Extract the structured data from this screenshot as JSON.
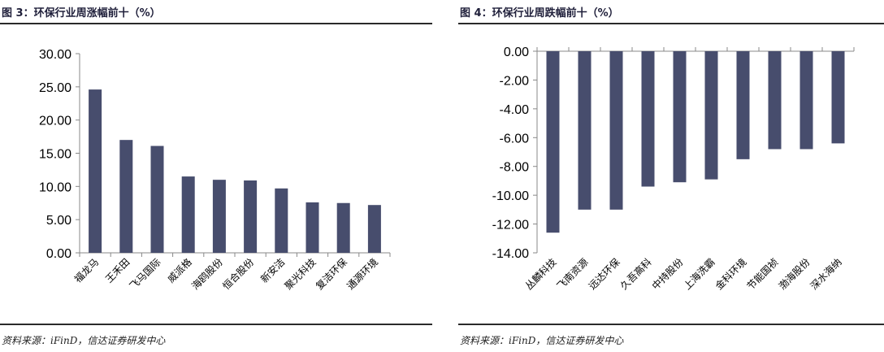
{
  "figures": [
    {
      "title": "图 3：环保行业周涨幅前十（%）",
      "source": "资料来源：iFinD，信达证券研发中心"
    },
    {
      "title": "图 4：环保行业周跌幅前十（%）",
      "source": "资料来源：iFinD，信达证券研发中心"
    }
  ],
  "chart_data": [
    {
      "type": "bar",
      "title": "图 3：环保行业周涨幅前十（%）",
      "categories": [
        "福龙马",
        "王禾田",
        "飞马国际",
        "威派格",
        "海鸥股份",
        "恒合股份",
        "新安洁",
        "聚光科技",
        "复洁环保",
        "通源环境"
      ],
      "values": [
        24.6,
        17.0,
        16.1,
        11.5,
        11.0,
        10.9,
        9.7,
        7.6,
        7.5,
        7.2
      ],
      "yticks": [
        "0.00",
        "5.00",
        "10.00",
        "15.00",
        "20.00",
        "25.00",
        "30.00"
      ],
      "ylim": [
        0,
        30
      ],
      "bar_color": "#474d6d",
      "grid": false,
      "legend": "none"
    },
    {
      "type": "bar",
      "title": "图 4：环保行业周跌幅前十（%）",
      "categories": [
        "丛麟科技",
        "飞南资源",
        "远达环保",
        "久吾高科",
        "中持股份",
        "上海洗霸",
        "金科环境",
        "节能国祯",
        "渤海股份",
        "深水海纳"
      ],
      "values": [
        -12.6,
        -11.0,
        -11.0,
        -9.4,
        -9.1,
        -8.9,
        -7.5,
        -6.8,
        -6.8,
        -6.4
      ],
      "yticks": [
        "0.00",
        "-2.00",
        "-4.00",
        "-6.00",
        "-8.00",
        "-10.00",
        "-12.00",
        "-14.00"
      ],
      "ylim": [
        -14,
        0
      ],
      "bar_color": "#474d6d",
      "grid": false,
      "legend": "none"
    }
  ]
}
